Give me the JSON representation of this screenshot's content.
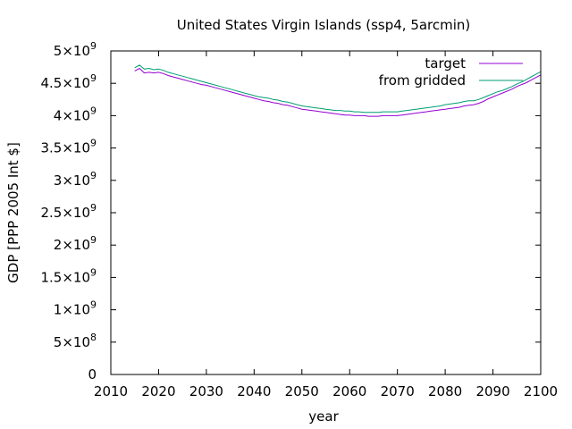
{
  "chart_data": {
    "type": "line",
    "title": "United States Virgin Islands (ssp4, 5arcmin)",
    "xlabel": "year",
    "ylabel": "GDP [PPP 2005 Int $]",
    "xlim": [
      2010,
      2100
    ],
    "ylim": [
      0,
      5000000000
    ],
    "grid": false,
    "legend_position": "top-right",
    "x_ticks": [
      {
        "value": 2010,
        "label": "2010"
      },
      {
        "value": 2020,
        "label": "2020"
      },
      {
        "value": 2030,
        "label": "2030"
      },
      {
        "value": 2040,
        "label": "2040"
      },
      {
        "value": 2050,
        "label": "2050"
      },
      {
        "value": 2060,
        "label": "2060"
      },
      {
        "value": 2070,
        "label": "2070"
      },
      {
        "value": 2080,
        "label": "2080"
      },
      {
        "value": 2090,
        "label": "2090"
      },
      {
        "value": 2100,
        "label": "2100"
      }
    ],
    "y_ticks": [
      {
        "value": 0,
        "mantissa": "0",
        "exp": ""
      },
      {
        "value": 500000000,
        "mantissa": "5×10",
        "exp": "8"
      },
      {
        "value": 1000000000,
        "mantissa": "1×10",
        "exp": "9"
      },
      {
        "value": 1500000000,
        "mantissa": "1.5×10",
        "exp": "9"
      },
      {
        "value": 2000000000,
        "mantissa": "2×10",
        "exp": "9"
      },
      {
        "value": 2500000000,
        "mantissa": "2.5×10",
        "exp": "9"
      },
      {
        "value": 3000000000,
        "mantissa": "3×10",
        "exp": "9"
      },
      {
        "value": 3500000000,
        "mantissa": "3.5×10",
        "exp": "9"
      },
      {
        "value": 4000000000,
        "mantissa": "4×10",
        "exp": "9"
      },
      {
        "value": 4500000000,
        "mantissa": "4.5×10",
        "exp": "9"
      },
      {
        "value": 5000000000,
        "mantissa": "5×10",
        "exp": "9"
      }
    ],
    "series": [
      {
        "name": "target",
        "color": "#9400d3",
        "x": [
          2015,
          2016,
          2017,
          2018,
          2019,
          2020,
          2021,
          2022,
          2023,
          2024,
          2025,
          2026,
          2027,
          2028,
          2029,
          2030,
          2031,
          2032,
          2033,
          2034,
          2035,
          2036,
          2037,
          2038,
          2039,
          2040,
          2041,
          2042,
          2043,
          2044,
          2045,
          2046,
          2047,
          2048,
          2049,
          2050,
          2051,
          2052,
          2053,
          2054,
          2055,
          2056,
          2057,
          2058,
          2059,
          2060,
          2061,
          2062,
          2063,
          2064,
          2065,
          2066,
          2067,
          2068,
          2069,
          2070,
          2071,
          2072,
          2073,
          2074,
          2075,
          2076,
          2077,
          2078,
          2079,
          2080,
          2081,
          2082,
          2083,
          2084,
          2085,
          2086,
          2087,
          2088,
          2089,
          2090,
          2091,
          2092,
          2093,
          2094,
          2095,
          2096,
          2097,
          2098,
          2099,
          2100
        ],
        "y": [
          4690000000,
          4730000000,
          4660000000,
          4670000000,
          4660000000,
          4670000000,
          4650000000,
          4620000000,
          4600000000,
          4580000000,
          4560000000,
          4540000000,
          4520000000,
          4500000000,
          4480000000,
          4470000000,
          4450000000,
          4430000000,
          4410000000,
          4390000000,
          4370000000,
          4350000000,
          4330000000,
          4310000000,
          4290000000,
          4270000000,
          4250000000,
          4230000000,
          4220000000,
          4200000000,
          4190000000,
          4170000000,
          4160000000,
          4140000000,
          4120000000,
          4100000000,
          4090000000,
          4080000000,
          4070000000,
          4060000000,
          4050000000,
          4040000000,
          4030000000,
          4020000000,
          4010000000,
          4010000000,
          4000000000,
          4000000000,
          4000000000,
          3990000000,
          3990000000,
          3990000000,
          4000000000,
          4000000000,
          4000000000,
          4000000000,
          4010000000,
          4020000000,
          4030000000,
          4040000000,
          4050000000,
          4060000000,
          4070000000,
          4080000000,
          4090000000,
          4100000000,
          4110000000,
          4120000000,
          4130000000,
          4150000000,
          4160000000,
          4170000000,
          4190000000,
          4220000000,
          4260000000,
          4290000000,
          4320000000,
          4350000000,
          4380000000,
          4410000000,
          4450000000,
          4480000000,
          4510000000,
          4550000000,
          4590000000,
          4630000000
        ]
      },
      {
        "name": "from gridded",
        "color": "#009e73",
        "x": [
          2015,
          2016,
          2017,
          2018,
          2019,
          2020,
          2021,
          2022,
          2023,
          2024,
          2025,
          2026,
          2027,
          2028,
          2029,
          2030,
          2031,
          2032,
          2033,
          2034,
          2035,
          2036,
          2037,
          2038,
          2039,
          2040,
          2041,
          2042,
          2043,
          2044,
          2045,
          2046,
          2047,
          2048,
          2049,
          2050,
          2051,
          2052,
          2053,
          2054,
          2055,
          2056,
          2057,
          2058,
          2059,
          2060,
          2061,
          2062,
          2063,
          2064,
          2065,
          2066,
          2067,
          2068,
          2069,
          2070,
          2071,
          2072,
          2073,
          2074,
          2075,
          2076,
          2077,
          2078,
          2079,
          2080,
          2081,
          2082,
          2083,
          2084,
          2085,
          2086,
          2087,
          2088,
          2089,
          2090,
          2091,
          2092,
          2093,
          2094,
          2095,
          2096,
          2097,
          2098,
          2099,
          2100
        ],
        "y": [
          4740000000,
          4780000000,
          4720000000,
          4730000000,
          4710000000,
          4720000000,
          4700000000,
          4670000000,
          4650000000,
          4630000000,
          4610000000,
          4590000000,
          4570000000,
          4550000000,
          4530000000,
          4510000000,
          4490000000,
          4470000000,
          4450000000,
          4430000000,
          4410000000,
          4390000000,
          4370000000,
          4350000000,
          4330000000,
          4310000000,
          4290000000,
          4280000000,
          4270000000,
          4250000000,
          4240000000,
          4220000000,
          4210000000,
          4190000000,
          4170000000,
          4150000000,
          4140000000,
          4130000000,
          4120000000,
          4110000000,
          4100000000,
          4090000000,
          4080000000,
          4080000000,
          4070000000,
          4070000000,
          4060000000,
          4060000000,
          4050000000,
          4050000000,
          4050000000,
          4050000000,
          4060000000,
          4060000000,
          4060000000,
          4060000000,
          4070000000,
          4080000000,
          4090000000,
          4100000000,
          4110000000,
          4120000000,
          4130000000,
          4140000000,
          4150000000,
          4170000000,
          4180000000,
          4190000000,
          4200000000,
          4220000000,
          4230000000,
          4230000000,
          4250000000,
          4280000000,
          4310000000,
          4340000000,
          4370000000,
          4390000000,
          4420000000,
          4450000000,
          4490000000,
          4520000000,
          4560000000,
          4600000000,
          4640000000,
          4680000000
        ]
      }
    ]
  }
}
